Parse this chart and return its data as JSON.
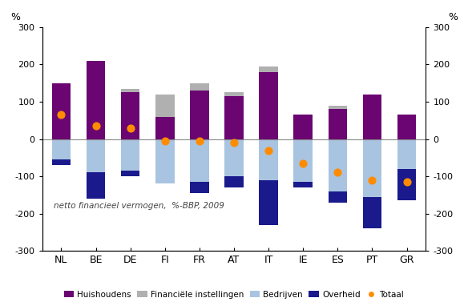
{
  "categories": [
    "NL",
    "BE",
    "DE",
    "FI",
    "FR",
    "AT",
    "IT",
    "IE",
    "ES",
    "PT",
    "GR"
  ],
  "huishoudens": [
    150,
    210,
    125,
    60,
    130,
    115,
    180,
    65,
    80,
    120,
    65
  ],
  "financiele": [
    0,
    0,
    10,
    60,
    20,
    10,
    15,
    0,
    10,
    0,
    0
  ],
  "bedrijven": [
    -55,
    -90,
    -85,
    -120,
    -115,
    -100,
    -110,
    -115,
    -140,
    -155,
    -80
  ],
  "overheid": [
    -15,
    -70,
    -15,
    0,
    -30,
    -30,
    -120,
    -15,
    -30,
    -85,
    -85
  ],
  "totaal": [
    65,
    35,
    30,
    -5,
    -5,
    -10,
    -30,
    -65,
    -90,
    -110,
    -115
  ],
  "color_huishoudens": "#6a0572",
  "color_financiele": "#b0b0b0",
  "color_bedrijven": "#a8c4e0",
  "color_overheid": "#1a1a8c",
  "color_totaal": "#ff8c00",
  "ylim": [
    -300,
    300
  ],
  "yticks": [
    -300,
    -200,
    -100,
    0,
    100,
    200,
    300
  ],
  "ylabel": "%",
  "annotation_text": "netto financieel vermogen,  %-BBP, 2009",
  "legend_labels": [
    "Huishoudens",
    "Financiële instellingen",
    "Bedrijven",
    "Overheid",
    "Totaal"
  ]
}
